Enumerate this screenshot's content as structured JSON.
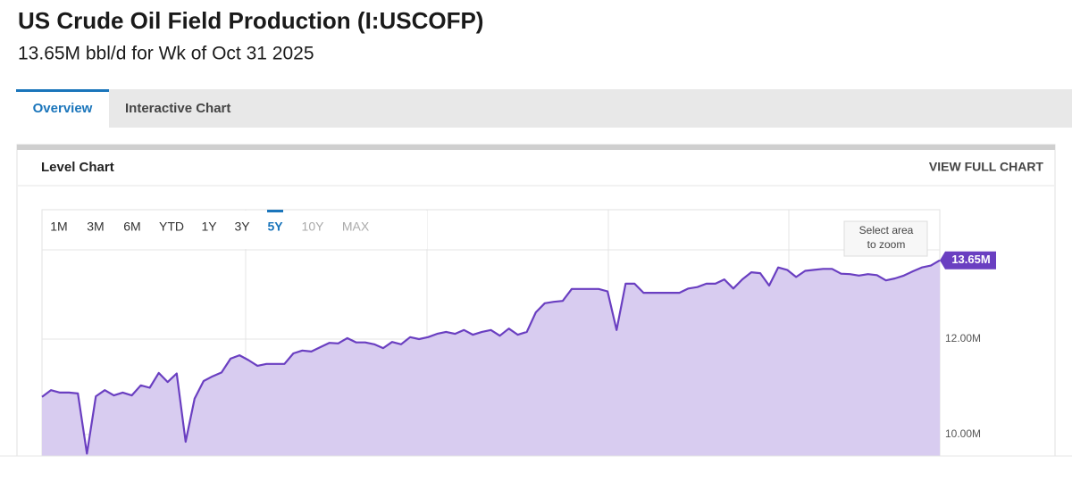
{
  "header": {
    "title": "US Crude Oil Field Production (I:USCOFP)",
    "subtitle": "13.65M bbl/d for Wk of Oct 31 2025"
  },
  "tabs": [
    "Overview",
    "Interactive Chart"
  ],
  "active_tab": 0,
  "card": {
    "title": "Level Chart",
    "link": "VIEW FULL CHART"
  },
  "range_buttons": [
    "1M",
    "3M",
    "6M",
    "YTD",
    "1Y",
    "3Y",
    "5Y",
    "10Y",
    "MAX"
  ],
  "active_range": 6,
  "zoom_hint": [
    "Select area",
    "to zoom"
  ],
  "chart_data": {
    "type": "area",
    "color": "#6a3fc1",
    "fill": "#d8ccf0",
    "grid": true,
    "ylim": [
      9.55,
      14.71
    ],
    "yticks": [
      {
        "value": 10,
        "label": "10.00M"
      },
      {
        "value": 12,
        "label": "12.00M"
      }
    ],
    "last_value_label": "13.65M",
    "values": [
      10.79,
      10.93,
      10.88,
      10.88,
      10.86,
      9.6,
      10.8,
      10.93,
      10.82,
      10.88,
      10.82,
      11.03,
      10.98,
      11.29,
      11.1,
      11.28,
      9.85,
      10.75,
      11.12,
      11.22,
      11.3,
      11.59,
      11.66,
      11.56,
      11.44,
      11.48,
      11.48,
      11.48,
      11.7,
      11.76,
      11.74,
      11.83,
      11.92,
      11.91,
      12.02,
      11.93,
      11.93,
      11.89,
      11.81,
      11.94,
      11.89,
      12.04,
      12.0,
      12.04,
      12.11,
      12.15,
      12.11,
      12.19,
      12.09,
      12.15,
      12.19,
      12.07,
      12.22,
      12.09,
      12.15,
      12.56,
      12.75,
      12.78,
      12.8,
      13.05,
      13.05,
      13.05,
      13.05,
      13.0,
      12.19,
      13.16,
      13.16,
      12.97,
      12.97,
      12.97,
      12.97,
      12.97,
      13.06,
      13.09,
      13.16,
      13.16,
      13.25,
      13.06,
      13.25,
      13.4,
      13.38,
      13.12,
      13.5,
      13.45,
      13.3,
      13.43,
      13.45,
      13.47,
      13.47,
      13.37,
      13.36,
      13.33,
      13.36,
      13.34,
      13.23,
      13.27,
      13.33,
      13.42,
      13.5,
      13.54,
      13.65
    ]
  }
}
